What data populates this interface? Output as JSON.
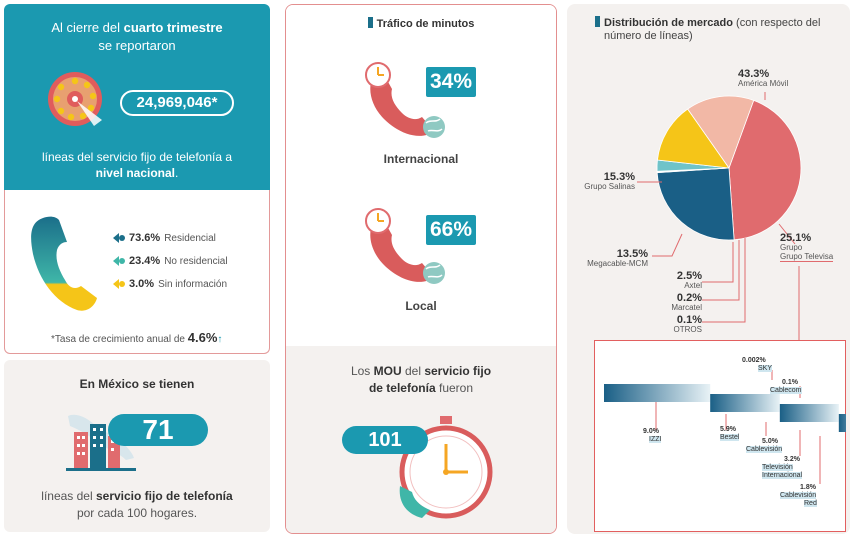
{
  "left_top": {
    "intro_line1_pre": "Al cierre del ",
    "intro_line1_bold": "cuarto trimestre",
    "intro_line2": "se reportaron",
    "total_lines": "24,969,046*",
    "desc_line1": "líneas del servicio fijo de telefonía a",
    "desc_line2": "nivel nacional",
    "desc_line2_end": "."
  },
  "segments": [
    {
      "value": "73.6%",
      "label": "Residencial",
      "color": "#1b6f8a"
    },
    {
      "value": "23.4%",
      "label": "No residencial",
      "color": "#3fb6a8"
    },
    {
      "value": "3.0%",
      "label": "Sin información",
      "color": "#f5c518"
    }
  ],
  "growth": {
    "label": "*Tasa de crecimiento anual de ",
    "value": "4.6%",
    "arrow": "↑"
  },
  "mexico": {
    "title": "En México se tienen",
    "value": "71",
    "line1_pre": "líneas del ",
    "line1_bold": "servicio fijo de telefonía",
    "line2": "por cada 100 hogares."
  },
  "traffic": {
    "title": "Tráfico de minutos",
    "international_pct": "34%",
    "international_label": "Internacional",
    "local_pct": "66%",
    "local_label": "Local"
  },
  "mou": {
    "line1_pre": "Los ",
    "line1_bold1": "MOU",
    "line1_mid": " del ",
    "line1_bold2": "servicio fijo",
    "line2_bold": "de telefonía",
    "line2_end": " fueron",
    "value": "101"
  },
  "market": {
    "title_bold": "Distribución de mercado",
    "title_rest": " (con respecto del",
    "title_line2": "número de líneas)"
  },
  "chart_data": [
    {
      "type": "pie",
      "title": "Distribución de mercado (con respecto del número de líneas)",
      "categories": [
        "América Móvil",
        "Grupo Televisa",
        "OTROS",
        "Marcatel",
        "Axtel",
        "Megacable-MCM",
        "Grupo Salinas"
      ],
      "values": [
        43.3,
        25.1,
        0.1,
        0.2,
        2.5,
        13.5,
        15.3
      ],
      "labels": [
        "43.3%",
        "25.1%",
        "0.1%",
        "0.2%",
        "2.5%",
        "13.5%",
        "15.3%"
      ],
      "colors": [
        "#e06b6e",
        "#1a5f86",
        "#9bb7c2",
        "#7fa6b3",
        "#6fc3c9",
        "#f5c518",
        "#f2b8a6"
      ]
    },
    {
      "type": "bar",
      "title": "",
      "categories": [
        "SKY",
        "Cablecom",
        "IZZI",
        "Bestel",
        "Cablevisión",
        "Televisión Internacional",
        "Cablevisión Red"
      ],
      "values": [
        0.002,
        0.1,
        9.0,
        5.9,
        5.0,
        3.2,
        1.8
      ],
      "labels": [
        "0.002%",
        "0.1%",
        "9.0%",
        "5.9%",
        "5.0%",
        "3.2%",
        "1.8%"
      ]
    }
  ]
}
